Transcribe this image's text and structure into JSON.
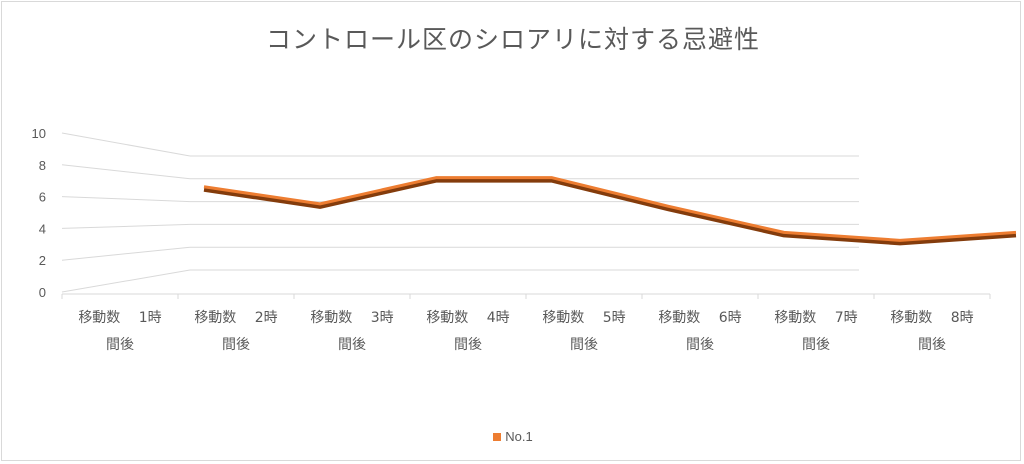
{
  "chart_data": {
    "type": "line",
    "title": "コントロール区のシロアリに対する忌避性",
    "categories": [
      [
        "移動数　 1時",
        "間後"
      ],
      [
        "移動数　 2時",
        "間後"
      ],
      [
        "移動数　 3時",
        "間後"
      ],
      [
        "移動数　 4時",
        "間後"
      ],
      [
        "移動数　 5時",
        "間後"
      ],
      [
        "移動数　 6時",
        "間後"
      ],
      [
        "移動数　 7時",
        "間後"
      ],
      [
        "移動数　 8時",
        "間後"
      ]
    ],
    "y_ticks": [
      "0",
      "2",
      "4",
      "6",
      "8",
      "10"
    ],
    "ylim": [
      0,
      10
    ],
    "series": [
      {
        "name": "No.1",
        "values": [
          7.3,
          5.8,
          8.1,
          8.1,
          5.6,
          3.3,
          2.6,
          3.3
        ],
        "color": "#ed7d31",
        "shadow_color": "#843c0c"
      }
    ],
    "grid": true,
    "legend_position": "bottom",
    "xlabel": "",
    "ylabel": ""
  }
}
